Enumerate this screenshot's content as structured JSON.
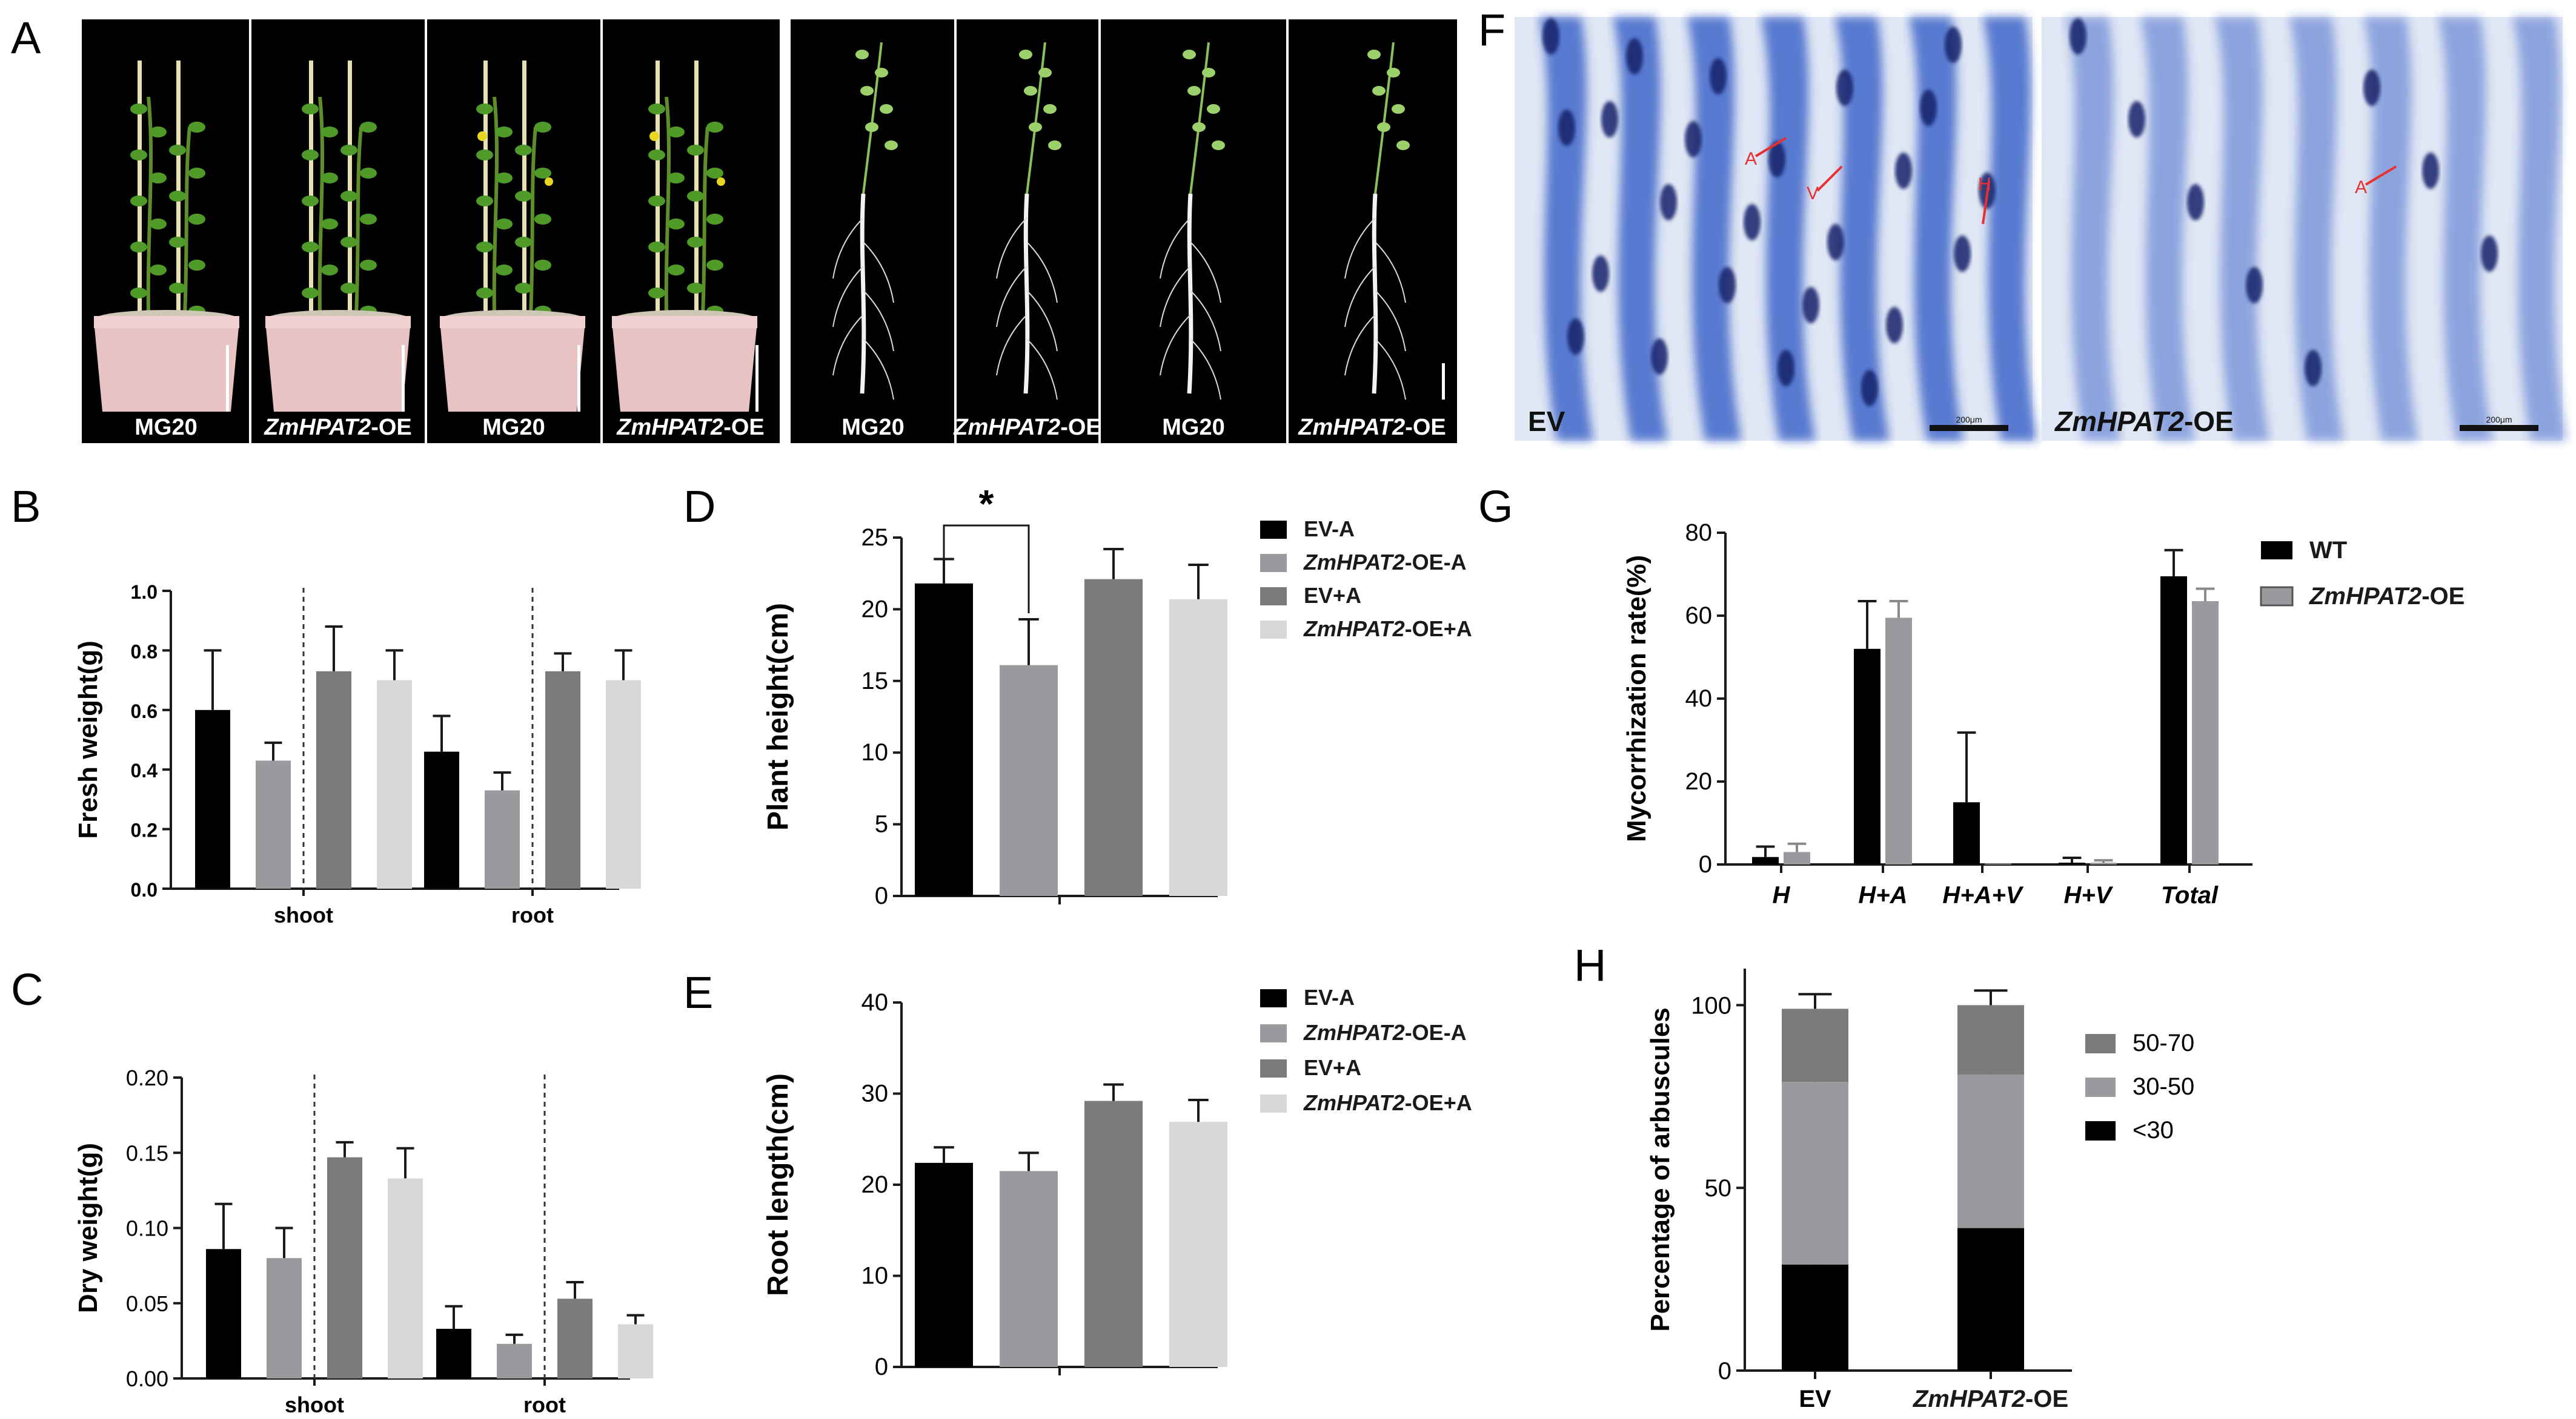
{
  "panel_letters": [
    "A",
    "B",
    "C",
    "D",
    "E",
    "F",
    "G",
    "H"
  ],
  "colors": {
    "black": "#000000",
    "gray_mid": "#9a9a9e",
    "gray_dark": "#7b7b7b",
    "gray_light": "#d8d8d8",
    "stain_blue": "#2b55c4",
    "arrow_red": "#e83030"
  },
  "photos": {
    "A_left": {
      "background": "#000000",
      "captions": [
        {
          "plain": "MG20",
          "italic": ""
        },
        {
          "plain": "-OE",
          "italic": "ZmHPAT2"
        },
        {
          "plain": "MG20",
          "italic": ""
        },
        {
          "plain": "-OE",
          "italic": "ZmHPAT2"
        }
      ]
    },
    "A_right": {
      "background": "#000000",
      "captions": [
        {
          "plain": "MG20",
          "italic": ""
        },
        {
          "plain": "-OE",
          "italic": "ZmHPAT2"
        },
        {
          "plain": "MG20",
          "italic": ""
        },
        {
          "plain": "-OE",
          "italic": "ZmHPAT2"
        }
      ]
    },
    "F": {
      "images": [
        {
          "caption_plain": "EV",
          "caption_italic": "",
          "arrows": [
            "A",
            "V",
            "H"
          ],
          "scale_text": "200μm"
        },
        {
          "caption_plain": "-OE",
          "caption_italic": "ZmHPAT2",
          "arrows": [
            "A"
          ],
          "scale_text": "200μm"
        }
      ]
    }
  },
  "chart_data": [
    {
      "panel": "B",
      "type": "bar",
      "ylabel": "Fresh weight(g)",
      "ylim": [
        0,
        1.0
      ],
      "yticks": [
        "0.0",
        "0.2",
        "0.4",
        "0.6",
        "0.8",
        "1.0"
      ],
      "categories": [
        "shoot",
        "root"
      ],
      "series": [
        {
          "values": [
            0.6,
            0.46
          ],
          "errors": [
            0.2,
            0.12
          ]
        },
        {
          "values": [
            0.43,
            0.33
          ],
          "errors": [
            0.06,
            0.06
          ]
        },
        {
          "values": [
            0.73,
            0.73
          ],
          "errors": [
            0.15,
            0.06
          ]
        },
        {
          "values": [
            0.7,
            0.7
          ],
          "errors": [
            0.1,
            0.1
          ]
        }
      ]
    },
    {
      "panel": "C",
      "type": "bar",
      "ylabel": "Dry weight(g)",
      "ylim": [
        0,
        0.2
      ],
      "yticks": [
        "0.00",
        "0.05",
        "0.10",
        "0.15",
        "0.20"
      ],
      "categories": [
        "shoot",
        "root"
      ],
      "series": [
        {
          "values": [
            0.086,
            0.033
          ],
          "errors": [
            0.03,
            0.015
          ]
        },
        {
          "values": [
            0.08,
            0.023
          ],
          "errors": [
            0.02,
            0.006
          ]
        },
        {
          "values": [
            0.147,
            0.053
          ],
          "errors": [
            0.01,
            0.011
          ]
        },
        {
          "values": [
            0.133,
            0.036
          ],
          "errors": [
            0.02,
            0.006
          ]
        }
      ]
    },
    {
      "panel": "D",
      "type": "bar",
      "ylabel": "Plant height(cm)",
      "ylim": [
        0,
        25
      ],
      "yticks": [
        "0",
        "5",
        "10",
        "15",
        "20",
        "25"
      ],
      "categories": [
        "EV-A",
        "ZmHPAT2-OE-A",
        "EV+A",
        "ZmHPAT2-OE+A"
      ],
      "values": [
        21.8,
        16.1,
        22.1,
        20.7
      ],
      "errors": [
        1.7,
        3.2,
        2.1,
        2.4
      ],
      "significance": "*",
      "legend": [
        {
          "italic": "",
          "plain": "EV-A"
        },
        {
          "italic": "ZmHPAT2",
          "plain": "-OE-A"
        },
        {
          "italic": "",
          "plain": "EV+A"
        },
        {
          "italic": "ZmHPAT2",
          "plain": "-OE+A"
        }
      ]
    },
    {
      "panel": "E",
      "type": "bar",
      "ylabel": "Root length(cm)",
      "ylim": [
        0,
        40
      ],
      "yticks": [
        "0",
        "10",
        "20",
        "30",
        "40"
      ],
      "categories": [
        "EV-A",
        "ZmHPAT2-OE-A",
        "EV+A",
        "ZmHPAT2-OE+A"
      ],
      "values": [
        22.4,
        21.5,
        29.2,
        26.9
      ],
      "errors": [
        1.7,
        2.0,
        1.8,
        2.4
      ],
      "legend": [
        {
          "italic": "",
          "plain": "EV-A"
        },
        {
          "italic": "ZmHPAT2",
          "plain": "-OE-A"
        },
        {
          "italic": "",
          "plain": "EV+A"
        },
        {
          "italic": "ZmHPAT2",
          "plain": "-OE+A"
        }
      ]
    },
    {
      "panel": "G",
      "type": "bar",
      "ylabel": "Mycorrhization rate(%)",
      "ylim": [
        0,
        80
      ],
      "yticks": [
        "0",
        "20",
        "40",
        "60",
        "80"
      ],
      "categories": [
        "H",
        "H+A",
        "H+A+V",
        "H+V",
        "Total"
      ],
      "series": [
        {
          "name": "WT",
          "values": [
            1.8,
            52.0,
            15.0,
            0.4,
            69.5
          ],
          "errors": [
            2.5,
            11.5,
            16.8,
            1.2,
            6.3
          ]
        },
        {
          "name": "ZmHPAT2-OE",
          "values": [
            3.0,
            59.5,
            0.0,
            0.4,
            63.5
          ],
          "errors": [
            2.0,
            4.0,
            0.0,
            0.6,
            3.0
          ]
        }
      ],
      "legend": [
        {
          "italic": "",
          "plain": "WT"
        },
        {
          "italic": "ZmHPAT2",
          "plain": "-OE"
        }
      ]
    },
    {
      "panel": "H",
      "type": "bar",
      "stacked": true,
      "ylabel": "Percentage of arbuscules",
      "ylim": [
        0,
        110
      ],
      "yticks": [
        "0",
        "50",
        "100"
      ],
      "categories": [
        "EV",
        "ZmHPAT2-OE"
      ],
      "series": [
        {
          "name": "<30",
          "values": [
            29,
            39
          ],
          "errors": [
            3,
            1.5
          ]
        },
        {
          "name": "30-50",
          "values": [
            50,
            42
          ],
          "errors": [
            4,
            2
          ]
        },
        {
          "name": "50-70",
          "values": [
            20,
            19
          ],
          "errors": [
            4,
            4
          ]
        }
      ],
      "legend": [
        {
          "italic": "",
          "plain": "50-70"
        },
        {
          "italic": "",
          "plain": "30-50"
        },
        {
          "italic": "",
          "plain": "<30"
        }
      ]
    }
  ]
}
